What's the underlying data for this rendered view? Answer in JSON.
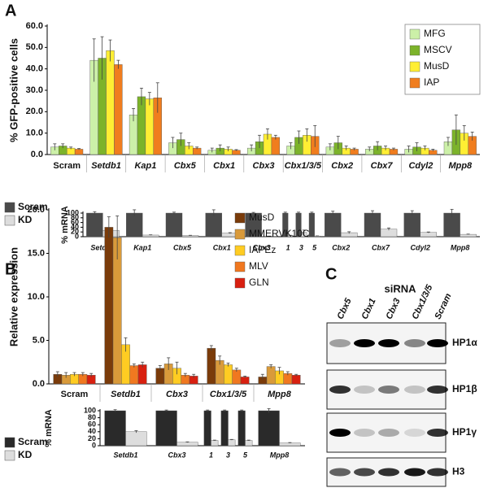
{
  "panels": [
    "A",
    "B",
    "C"
  ],
  "chart_data": [
    {
      "type": "bar",
      "ylabel": "% GFP-positive cells",
      "categories": [
        "Scram",
        "Setdb1",
        "Kap1",
        "Cbx5",
        "Cbx1",
        "Cbx3",
        "Cbx1/3/5",
        "Cbx2",
        "Cbx7",
        "Cdyl2",
        "Mpp8"
      ],
      "series": [
        {
          "name": "MFG",
          "color": "#ccf0a8",
          "values": [
            3.5,
            44,
            18.5,
            5.5,
            2,
            3,
            4,
            3.5,
            2.5,
            2.5,
            6
          ],
          "errors": [
            1.5,
            10,
            3,
            2.5,
            1,
            1.5,
            1.5,
            1.5,
            1,
            1.5,
            2
          ]
        },
        {
          "name": "MSCV",
          "color": "#7cb32a",
          "values": [
            4,
            45,
            27,
            7,
            3,
            6,
            8,
            5.5,
            4,
            3.5,
            11.5
          ],
          "errors": [
            1,
            10,
            4,
            3,
            1.5,
            3,
            3,
            3,
            2,
            2,
            7
          ]
        },
        {
          "name": "MusD",
          "color": "#ffee33",
          "values": [
            3,
            48.5,
            26,
            4,
            2.5,
            9.5,
            9,
            3,
            3,
            3,
            10
          ],
          "errors": [
            0.5,
            5,
            3,
            1.5,
            1,
            2.5,
            3,
            1,
            1,
            1,
            3.5
          ]
        },
        {
          "name": "IAP",
          "color": "#f07d1e",
          "values": [
            2.5,
            42,
            26.5,
            3,
            2,
            8,
            8.5,
            2.5,
            2.5,
            2,
            8.5
          ],
          "errors": [
            0.3,
            2,
            7,
            0.5,
            0.3,
            1,
            5,
            0.5,
            0.5,
            0.5,
            2
          ]
        }
      ],
      "ylim": [
        0,
        60
      ],
      "yticks": [
        {
          "value": 0,
          "label": "0.0"
        },
        {
          "value": 10,
          "label": "10.0"
        },
        {
          "value": 20,
          "label": "20.0"
        },
        {
          "value": 30,
          "label": "30.0"
        },
        {
          "value": 40,
          "label": "40.0"
        },
        {
          "value": 50,
          "label": "50.0"
        },
        {
          "value": 60,
          "label": "60.0"
        }
      ],
      "legend": "upper right",
      "legend_frame": true
    },
    {
      "type": "bar",
      "ylabel": "% mRNA",
      "categories": [
        "Setdb1",
        "Kap1",
        "Cbx5",
        "Cbx1",
        "Cbx3",
        "1",
        "3",
        "5",
        "Cbx2",
        "Cbx7",
        "Cdyl2",
        "Mpp8"
      ],
      "series": [
        {
          "name": "Scram",
          "color": "#4a4a4a",
          "values": [
            100,
            100,
            100,
            100,
            100,
            100,
            100,
            100,
            100,
            100,
            100,
            100
          ],
          "errors": [
            6,
            14,
            4,
            14,
            3,
            4,
            4,
            4,
            8,
            10,
            10,
            16
          ]
        },
        {
          "name": "KD",
          "color": "#dddddd",
          "values": [
            27,
            7,
            5,
            15,
            2,
            5,
            18,
            3,
            17,
            32,
            18,
            10
          ],
          "errors": [
            5,
            1,
            1,
            2,
            0.5,
            1,
            10,
            0.5,
            4,
            5,
            2,
            1
          ]
        }
      ],
      "ylim": [
        0,
        100
      ],
      "yticks": [
        0,
        20,
        40,
        60,
        80,
        100
      ],
      "legend": "left",
      "legend_frame": false
    },
    {
      "type": "bar",
      "ylabel": "Relative expression",
      "categories": [
        "Scram",
        "Setdb1",
        "Cbx3",
        "Cbx1/3/5",
        "Mpp8"
      ],
      "series": [
        {
          "name": "MusD",
          "color": "#7a3b0a",
          "values": [
            1.1,
            18,
            1.8,
            4.1,
            0.8
          ],
          "errors": [
            0.3,
            1.2,
            0.3,
            0.3,
            0.3
          ]
        },
        {
          "name": "MMERVK10C",
          "color": "#d99a3a",
          "values": [
            1.0,
            16.8,
            2.3,
            2.7,
            2.0
          ],
          "errors": [
            0.3,
            2.5,
            0.7,
            0.5,
            0.2
          ]
        },
        {
          "name": "IAPEz",
          "color": "#ffcc22",
          "values": [
            1.1,
            4.5,
            1.8,
            2.2,
            1.5
          ],
          "errors": [
            0.2,
            0.8,
            0.7,
            0.2,
            0.4
          ]
        },
        {
          "name": "MLV",
          "color": "#f07820",
          "values": [
            1.1,
            2.1,
            1.0,
            1.6,
            1.2
          ],
          "errors": [
            0.2,
            0.2,
            0.2,
            0.2,
            0.2
          ]
        },
        {
          "name": "GLN",
          "color": "#d82010",
          "values": [
            1.0,
            2.2,
            0.9,
            0.8,
            1.0
          ],
          "errors": [
            0.2,
            0.3,
            0.2,
            0.1,
            0.1
          ]
        }
      ],
      "ylim": [
        0,
        20
      ],
      "yticks": [
        {
          "value": 0,
          "label": "0.0"
        },
        {
          "value": 5,
          "label": "5.0"
        },
        {
          "value": 10,
          "label": "10.0"
        },
        {
          "value": 15,
          "label": "15.0"
        },
        {
          "value": 20,
          "label": "20.0"
        }
      ],
      "legend": "upper right",
      "legend_frame": false
    },
    {
      "type": "bar",
      "ylabel": "% mRNA",
      "categories": [
        "Setdb1",
        "Cbx3",
        "1",
        "3",
        "5",
        "Mpp8"
      ],
      "series": [
        {
          "name": "Scram",
          "color": "#2a2a2a",
          "values": [
            100,
            100,
            100,
            100,
            100,
            100
          ],
          "errors": [
            3,
            2,
            2,
            2,
            2,
            6
          ]
        },
        {
          "name": "KD",
          "color": "#dddddd",
          "values": [
            40,
            10,
            15,
            17,
            15,
            8
          ],
          "errors": [
            3,
            1,
            1,
            1,
            1,
            1
          ]
        }
      ],
      "ylim": [
        0,
        100
      ],
      "yticks": [
        0,
        20,
        40,
        60,
        80,
        100
      ],
      "legend": "left",
      "legend_frame": false
    }
  ],
  "blot": {
    "title": "siRNA",
    "lanes": [
      "Cbx5",
      "Cbx1",
      "Cbx3",
      "Cbx1/3/5",
      "Scram"
    ],
    "rows": [
      "HP1α",
      "HP1β",
      "HP1γ",
      "H3"
    ]
  }
}
